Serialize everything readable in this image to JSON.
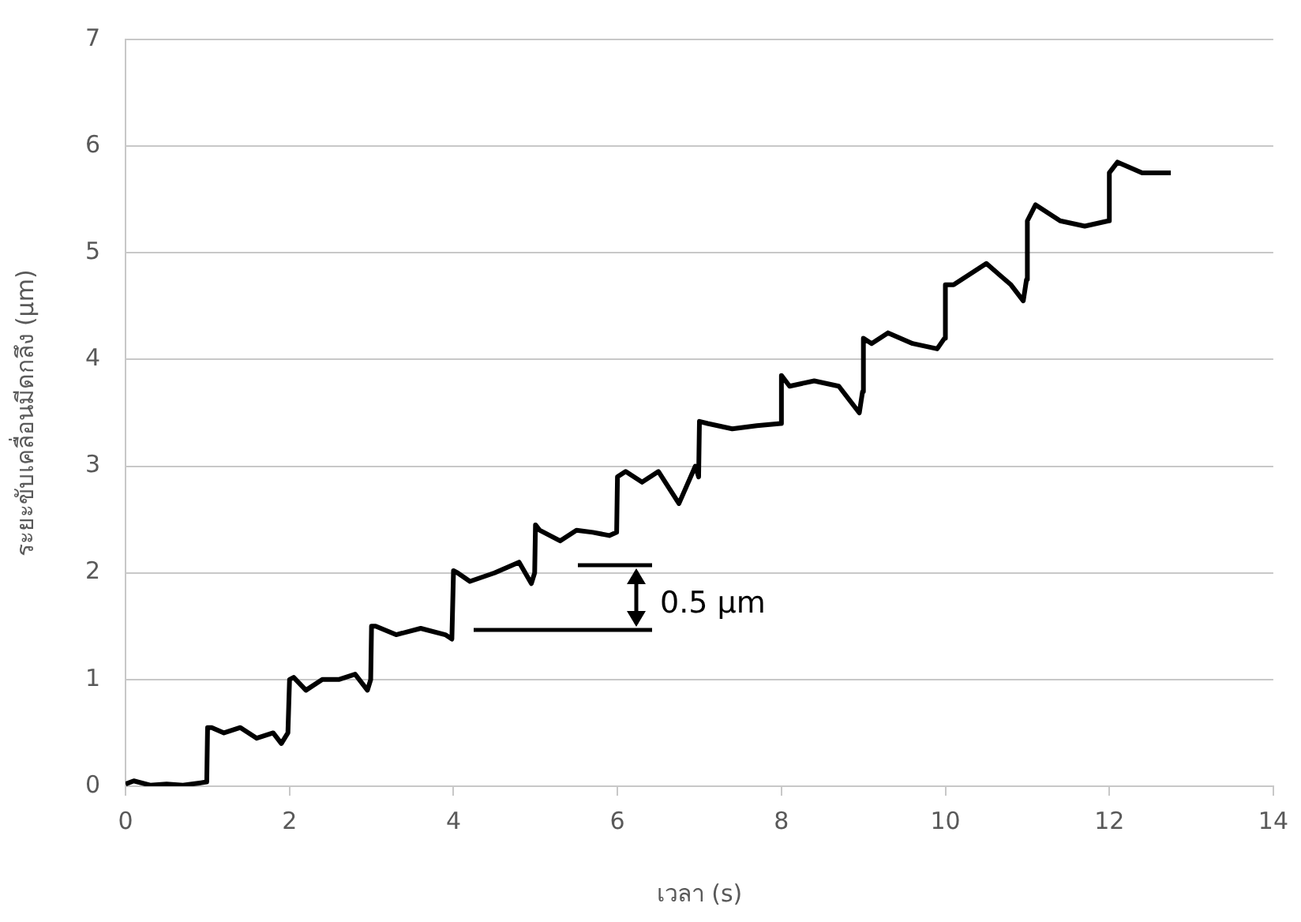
{
  "chart_data": {
    "type": "line",
    "xlabel": "เวลา (s)",
    "ylabel": "ระยะขับเคลื่อนมีดกลึง (µm)",
    "annotations": [
      "0.5 µm"
    ],
    "x": [
      0,
      0.1,
      0.3,
      0.5,
      0.7,
      0.9,
      0.99,
      1.0,
      1.05,
      1.2,
      1.4,
      1.6,
      1.8,
      1.9,
      1.98,
      2.0,
      2.05,
      2.2,
      2.4,
      2.6,
      2.8,
      2.95,
      2.99,
      3.0,
      3.05,
      3.3,
      3.6,
      3.9,
      3.98,
      4.0,
      4.05,
      4.2,
      4.5,
      4.8,
      4.95,
      4.99,
      5.0,
      5.05,
      5.3,
      5.5,
      5.7,
      5.9,
      5.99,
      6.0,
      6.1,
      6.3,
      6.5,
      6.75,
      6.95,
      6.99,
      7.0,
      7.1,
      7.4,
      7.7,
      7.99,
      8.0,
      8.1,
      8.4,
      8.7,
      8.95,
      8.99,
      9.0,
      9.1,
      9.3,
      9.6,
      9.9,
      9.99,
      10.0,
      10.1,
      10.5,
      10.8,
      10.95,
      10.99,
      11.0,
      11.1,
      11.4,
      11.7,
      11.99,
      12.0,
      12.1,
      12.4,
      12.75
    ],
    "series": [
      {
        "color": "#000000",
        "values": [
          0.02,
          0.05,
          0.01,
          0.02,
          0.01,
          0.03,
          0.04,
          0.55,
          0.55,
          0.5,
          0.55,
          0.45,
          0.5,
          0.4,
          0.5,
          1.0,
          1.02,
          0.9,
          1.0,
          1.0,
          1.05,
          0.9,
          1.0,
          1.5,
          1.5,
          1.42,
          1.48,
          1.42,
          1.38,
          2.02,
          2.0,
          1.92,
          2.0,
          2.1,
          1.9,
          2.0,
          2.45,
          2.4,
          2.3,
          2.4,
          2.38,
          2.35,
          2.38,
          2.9,
          2.95,
          2.85,
          2.95,
          2.65,
          3.0,
          2.9,
          3.42,
          3.4,
          3.35,
          3.38,
          3.4,
          3.85,
          3.75,
          3.8,
          3.75,
          3.5,
          3.7,
          4.2,
          4.15,
          4.25,
          4.15,
          4.1,
          4.2,
          4.7,
          4.7,
          4.9,
          4.7,
          4.55,
          4.75,
          5.3,
          5.45,
          5.3,
          5.25,
          5.3,
          5.75,
          5.85,
          5.75,
          5.75
        ]
      }
    ],
    "xlim": [
      0,
      14
    ],
    "xticks": [
      0,
      2,
      4,
      6,
      8,
      10,
      12,
      14
    ],
    "ylim": [
      0,
      7
    ],
    "yticks": [
      0,
      1,
      2,
      3,
      4,
      5,
      6,
      7
    ],
    "grid": "y",
    "legend": false,
    "marker": "none",
    "line_style": "solid"
  }
}
